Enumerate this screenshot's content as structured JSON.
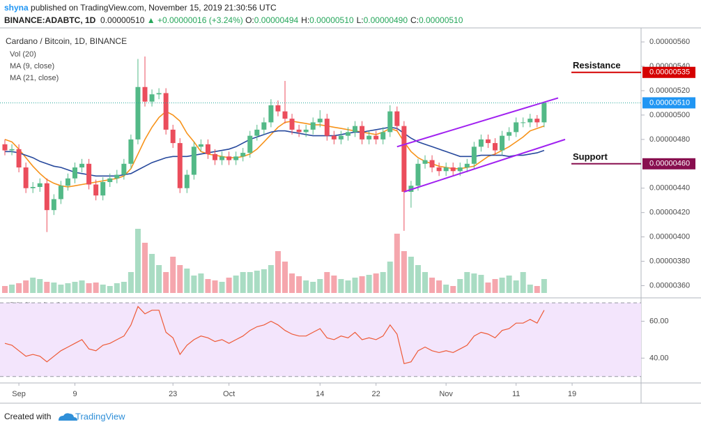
{
  "header": {
    "author": "shyna",
    "published": "published on TradingView.com, November 15, 2019 21:30:56 UTC",
    "symbol": "BINANCE:ADABTC, 1D",
    "price": "0.00000510",
    "change": "▲ +0.00000016 (+3.24%)",
    "ohlc": [
      {
        "label": "O:",
        "value": "0.00000494"
      },
      {
        "label": "H:",
        "value": "0.00000510"
      },
      {
        "label": "L:",
        "value": "0.00000490"
      },
      {
        "label": "C:",
        "value": "0.00000510"
      }
    ]
  },
  "footer": {
    "text": "Created with",
    "brand": "TradingView"
  },
  "chart_data": {
    "type": "candlestick",
    "title": "Cardano / Bitcoin, 1D, BINANCE",
    "up_color": "#53b987",
    "down_color": "#eb4d5c",
    "grid": false,
    "categories": [
      null,
      null,
      "Sep",
      null,
      null,
      null,
      null,
      null,
      null,
      null,
      "9",
      null,
      null,
      null,
      null,
      null,
      null,
      null,
      null,
      null,
      null,
      null,
      null,
      null,
      "23",
      null,
      null,
      null,
      null,
      null,
      null,
      null,
      "Oct",
      null,
      null,
      null,
      null,
      null,
      null,
      null,
      null,
      null,
      null,
      null,
      null,
      "14",
      null,
      null,
      null,
      null,
      null,
      null,
      null,
      "22",
      null,
      null,
      null,
      null,
      null,
      null,
      null,
      null,
      null,
      "Nov",
      null,
      null,
      null,
      null,
      null,
      null,
      null,
      null,
      null,
      "11",
      null,
      null,
      null,
      null,
      null,
      null,
      null,
      "19"
    ],
    "open": [
      4.76e-06,
      4.71e-06,
      4.72e-06,
      4.57e-06,
      4.4e-06,
      4.41e-06,
      4.44e-06,
      4.22e-06,
      4.31e-06,
      4.42e-06,
      4.48e-06,
      4.57e-06,
      4.6e-06,
      4.43e-06,
      4.34e-06,
      4.45e-06,
      4.48e-06,
      4.51e-06,
      4.6e-06,
      4.8e-06,
      5.23e-06,
      5.11e-06,
      5.17e-06,
      5.18e-06,
      4.88e-06,
      4.77e-06,
      4.4e-06,
      4.51e-06,
      4.74e-06,
      4.76e-06,
      4.68e-06,
      4.63e-06,
      4.66e-06,
      4.63e-06,
      4.66e-06,
      4.69e-06,
      4.83e-06,
      4.88e-06,
      4.94e-06,
      5.08e-06,
      5.03e-06,
      4.97e-06,
      4.88e-06,
      4.86e-06,
      4.88e-06,
      4.94e-06,
      4.97e-06,
      4.83e-06,
      4.8e-06,
      4.83e-06,
      4.86e-06,
      4.91e-06,
      4.8e-06,
      4.83e-06,
      4.8e-06,
      4.86e-06,
      5.03e-06,
      4.91e-06,
      4.37e-06,
      4.42e-06,
      4.6e-06,
      4.63e-06,
      4.57e-06,
      4.54e-06,
      4.57e-06,
      4.54e-06,
      4.57e-06,
      4.6e-06,
      4.74e-06,
      4.8e-06,
      4.77e-06,
      4.71e-06,
      4.83e-06,
      4.86e-06,
      4.94e-06,
      4.94e-06,
      4.97e-06,
      4.94e-06,
      null,
      null,
      null,
      null
    ],
    "high": [
      4.8e-06,
      4.76e-06,
      4.76e-06,
      4.61e-06,
      4.45e-06,
      4.48e-06,
      4.48e-06,
      4.35e-06,
      4.46e-06,
      4.52e-06,
      4.61e-06,
      4.64e-06,
      4.64e-06,
      4.47e-06,
      4.49e-06,
      4.52e-06,
      4.55e-06,
      4.64e-06,
      4.84e-06,
      5.46e-06,
      5.48e-06,
      5.21e-06,
      5.22e-06,
      5.22e-06,
      4.92e-06,
      4.81e-06,
      4.55e-06,
      4.78e-06,
      4.8e-06,
      4.8e-06,
      4.72e-06,
      4.7e-06,
      4.7e-06,
      4.7e-06,
      4.73e-06,
      4.87e-06,
      4.92e-06,
      4.98e-06,
      5.13e-06,
      5.12e-06,
      5.28e-06,
      5.01e-06,
      4.92e-06,
      4.92e-06,
      4.98e-06,
      5.04e-06,
      5.01e-06,
      4.87e-06,
      4.87e-06,
      4.9e-06,
      4.95e-06,
      4.95e-06,
      4.87e-06,
      4.87e-06,
      4.9e-06,
      5.08e-06,
      5.07e-06,
      4.95e-06,
      4.46e-06,
      4.64e-06,
      4.67e-06,
      4.67e-06,
      4.61e-06,
      4.61e-06,
      4.61e-06,
      4.61e-06,
      4.64e-06,
      4.78e-06,
      4.84e-06,
      4.84e-06,
      4.81e-06,
      4.87e-06,
      4.9e-06,
      4.98e-06,
      4.98e-06,
      5.01e-06,
      5e-06,
      5.1e-06,
      null,
      null,
      null,
      null
    ],
    "low": [
      4.67e-06,
      4.67e-06,
      4.53e-06,
      4.36e-06,
      4.36e-06,
      4.37e-06,
      4.04e-06,
      4.18e-06,
      4.27e-06,
      4.38e-06,
      4.44e-06,
      4.53e-06,
      4.39e-06,
      4.3e-06,
      4.3e-06,
      4.41e-06,
      4.44e-06,
      4.47e-06,
      4.56e-06,
      4.76e-06,
      5.07e-06,
      5.07e-06,
      5.13e-06,
      4.84e-06,
      4.73e-06,
      4.36e-06,
      4.36e-06,
      4.47e-06,
      4.7e-06,
      4.64e-06,
      4.59e-06,
      4.59e-06,
      4.59e-06,
      4.59e-06,
      4.62e-06,
      4.65e-06,
      4.79e-06,
      4.84e-06,
      4.9e-06,
      4.99e-06,
      4.93e-06,
      4.84e-06,
      4.82e-06,
      4.82e-06,
      4.84e-06,
      4.9e-06,
      4.79e-06,
      4.76e-06,
      4.76e-06,
      4.79e-06,
      4.82e-06,
      4.76e-06,
      4.76e-06,
      4.76e-06,
      4.76e-06,
      4.82e-06,
      4.87e-06,
      4.05e-06,
      4.24e-06,
      4.38e-06,
      4.56e-06,
      4.53e-06,
      4.5e-06,
      4.5e-06,
      4.5e-06,
      4.5e-06,
      4.53e-06,
      4.56e-06,
      4.7e-06,
      4.73e-06,
      4.67e-06,
      4.67e-06,
      4.79e-06,
      4.82e-06,
      4.9e-06,
      4.9e-06,
      4.9e-06,
      4.9e-06,
      null,
      null,
      null,
      null
    ],
    "close": [
      4.71e-06,
      4.72e-06,
      4.57e-06,
      4.4e-06,
      4.41e-06,
      4.44e-06,
      4.22e-06,
      4.31e-06,
      4.42e-06,
      4.48e-06,
      4.57e-06,
      4.6e-06,
      4.43e-06,
      4.34e-06,
      4.45e-06,
      4.48e-06,
      4.51e-06,
      4.6e-06,
      4.8e-06,
      5.23e-06,
      5.11e-06,
      5.17e-06,
      5.18e-06,
      4.88e-06,
      4.77e-06,
      4.4e-06,
      4.51e-06,
      4.74e-06,
      4.76e-06,
      4.68e-06,
      4.63e-06,
      4.66e-06,
      4.63e-06,
      4.66e-06,
      4.69e-06,
      4.83e-06,
      4.88e-06,
      4.94e-06,
      5.08e-06,
      5.03e-06,
      4.97e-06,
      4.88e-06,
      4.86e-06,
      4.88e-06,
      4.94e-06,
      4.97e-06,
      4.83e-06,
      4.8e-06,
      4.83e-06,
      4.86e-06,
      4.91e-06,
      4.8e-06,
      4.83e-06,
      4.8e-06,
      4.86e-06,
      5.03e-06,
      4.91e-06,
      4.37e-06,
      4.42e-06,
      4.6e-06,
      4.63e-06,
      4.57e-06,
      4.54e-06,
      4.57e-06,
      4.54e-06,
      4.57e-06,
      4.6e-06,
      4.74e-06,
      4.8e-06,
      4.77e-06,
      4.71e-06,
      4.83e-06,
      4.86e-06,
      4.94e-06,
      4.94e-06,
      4.97e-06,
      4.94e-06,
      5.1e-06,
      null,
      null,
      null,
      null
    ],
    "ylim": [
      3.54e-06,
      5.715e-06
    ],
    "yticks": [
      {
        "value": 3.6e-06,
        "label": "0.00000360"
      },
      {
        "value": 3.8e-06,
        "label": "0.00000380"
      },
      {
        "value": 4e-06,
        "label": "0.00000400"
      },
      {
        "value": 4.2e-06,
        "label": "0.00000420"
      },
      {
        "value": 4.4e-06,
        "label": "0.00000440"
      },
      {
        "value": 4.8e-06,
        "label": "0.00000480"
      },
      {
        "value": 5e-06,
        "label": "0.00000500"
      },
      {
        "value": 5.2e-06,
        "label": "0.00000520"
      },
      {
        "value": 5.4e-06,
        "label": "0.00000540"
      },
      {
        "value": 5.6e-06,
        "label": "0.00000560"
      }
    ],
    "volume": {
      "name": "Vol (20)",
      "ylim": [
        0,
        100
      ],
      "values": [
        10,
        12,
        14,
        18,
        22,
        20,
        16,
        15,
        12,
        14,
        16,
        18,
        14,
        15,
        12,
        10,
        14,
        16,
        30,
        92,
        72,
        56,
        40,
        30,
        52,
        40,
        35,
        25,
        28,
        20,
        18,
        16,
        22,
        25,
        30,
        30,
        32,
        34,
        40,
        60,
        45,
        28,
        24,
        18,
        16,
        20,
        30,
        25,
        20,
        18,
        22,
        24,
        26,
        28,
        30,
        45,
        85,
        60,
        52,
        40,
        30,
        22,
        18,
        12,
        10,
        20,
        30,
        28,
        26,
        15,
        20,
        22,
        25,
        18,
        30,
        12,
        10,
        20,
        null,
        null,
        null,
        null
      ]
    },
    "series": [
      {
        "name": "MA (9, close)",
        "color": "#f7931a",
        "values": [
          4.8e-06,
          4.78e-06,
          4.72e-06,
          4.65e-06,
          4.58e-06,
          4.52e-06,
          4.47e-06,
          4.44e-06,
          4.42e-06,
          4.41e-06,
          4.42e-06,
          4.43e-06,
          4.44e-06,
          4.45e-06,
          4.46e-06,
          4.47e-06,
          4.48e-06,
          4.5e-06,
          4.56e-06,
          4.68e-06,
          4.8e-06,
          4.9e-06,
          4.98e-06,
          5.03e-06,
          5e-06,
          4.95e-06,
          4.85e-06,
          4.78e-06,
          4.7e-06,
          4.68e-06,
          4.67e-06,
          4.66e-06,
          4.65e-06,
          4.65e-06,
          4.66e-06,
          4.68e-06,
          4.72e-06,
          4.78e-06,
          4.84e-06,
          4.9e-06,
          4.94e-06,
          4.95e-06,
          4.94e-06,
          4.93e-06,
          4.92e-06,
          4.92e-06,
          4.91e-06,
          4.9e-06,
          4.89e-06,
          4.88e-06,
          4.87e-06,
          4.86e-06,
          4.85e-06,
          4.84e-06,
          4.86e-06,
          4.89e-06,
          4.87e-06,
          4.78e-06,
          4.7e-06,
          4.65e-06,
          4.62e-06,
          4.6e-06,
          4.58e-06,
          4.57e-06,
          4.56e-06,
          4.56e-06,
          4.57e-06,
          4.58e-06,
          4.62e-06,
          4.66e-06,
          4.68e-06,
          4.71e-06,
          4.74e-06,
          4.78e-06,
          4.82e-06,
          4.87e-06,
          4.89e-06,
          4.91e-06,
          null,
          null,
          null,
          null
        ]
      },
      {
        "name": "MA (21, close)",
        "color": "#26489c",
        "values": [
          4.7e-06,
          4.7e-06,
          4.69e-06,
          4.67e-06,
          4.65e-06,
          4.62e-06,
          4.6e-06,
          4.58e-06,
          4.57e-06,
          4.55e-06,
          4.53e-06,
          4.52e-06,
          4.51e-06,
          4.5e-06,
          4.5e-06,
          4.5e-06,
          4.5e-06,
          4.51e-06,
          4.52e-06,
          4.55e-06,
          4.58e-06,
          4.61e-06,
          4.63e-06,
          4.65e-06,
          4.66e-06,
          4.66e-06,
          4.66e-06,
          4.67e-06,
          4.68e-06,
          4.69e-06,
          4.7e-06,
          4.71e-06,
          4.72e-06,
          4.74e-06,
          4.77e-06,
          4.8e-06,
          4.82e-06,
          4.84e-06,
          4.86e-06,
          4.87e-06,
          4.87e-06,
          4.86e-06,
          4.85e-06,
          4.84e-06,
          4.83e-06,
          4.83e-06,
          4.83e-06,
          4.83e-06,
          4.84e-06,
          4.85e-06,
          4.86e-06,
          4.86e-06,
          4.87e-06,
          4.88e-06,
          4.89e-06,
          4.9e-06,
          4.89e-06,
          4.85e-06,
          4.81e-06,
          4.78e-06,
          4.76e-06,
          4.74e-06,
          4.72e-06,
          4.7e-06,
          4.68e-06,
          4.66e-06,
          4.66e-06,
          4.66e-06,
          4.67e-06,
          4.67e-06,
          4.67e-06,
          4.67e-06,
          4.66e-06,
          4.67e-06,
          4.67e-06,
          4.68e-06,
          4.69e-06,
          4.71e-06,
          null,
          null,
          null,
          null
        ]
      }
    ],
    "levels": [
      {
        "name": "Resistance",
        "value": 5.35e-06,
        "label": "0.00000535",
        "color": "#d50000"
      },
      {
        "name": "Support",
        "value": 4.6e-06,
        "label": "0.00000460",
        "color": "#880e4f"
      }
    ],
    "last_price": {
      "value": 5.1e-06,
      "label": "0.00000510",
      "color": "#2196f3"
    },
    "channel_color": "#a020f0",
    "channel": [
      {
        "x": [
          56,
          79
        ],
        "y": [
          4.74e-06,
          5.14e-06
        ]
      },
      {
        "x": [
          57,
          80
        ],
        "y": [
          4.37e-06,
          4.8e-06
        ]
      }
    ],
    "rsi": {
      "name": "RSI (14, close)",
      "color": "#ee5a37",
      "ylim": [
        26.9,
        72.3
      ],
      "bands": [
        30,
        70
      ],
      "yticks": [
        {
          "value": 40,
          "label": "40.00"
        },
        {
          "value": 60,
          "label": "60.00"
        }
      ],
      "values": [
        48,
        47,
        44,
        41,
        42,
        41,
        38,
        41,
        44,
        46,
        48,
        50,
        45,
        44,
        47,
        48,
        50,
        52,
        58,
        68,
        64,
        66,
        66,
        54,
        51,
        42,
        47,
        50,
        52,
        51,
        49,
        50,
        48,
        50,
        52,
        55,
        57,
        58,
        60,
        58,
        55,
        53,
        52,
        52,
        54,
        56,
        51,
        50,
        52,
        51,
        54,
        50,
        51,
        50,
        52,
        58,
        53,
        37,
        38,
        44,
        46,
        44,
        43,
        44,
        43,
        45,
        47,
        52,
        54,
        53,
        51,
        55,
        56,
        59,
        59,
        61,
        59,
        66,
        null,
        null,
        null,
        null
      ]
    }
  }
}
